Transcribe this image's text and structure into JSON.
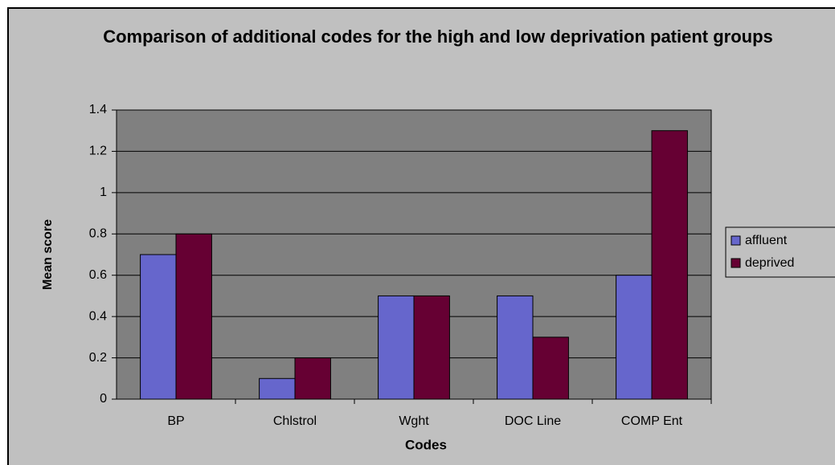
{
  "chart_data": {
    "type": "bar",
    "title": "Comparison of additional codes for the high and low deprivation patient groups",
    "x_label": "Codes",
    "y_label": "Mean score",
    "categories": [
      "BP",
      "Chlstrol",
      "Wght",
      "DOC Line",
      "COMP Ent"
    ],
    "series": [
      {
        "name": "affluent",
        "color": "#6666cc",
        "values": [
          0.7,
          0.1,
          0.5,
          0.5,
          0.6
        ]
      },
      {
        "name": "deprived",
        "color": "#660033",
        "values": [
          0.8,
          0.2,
          0.5,
          0.3,
          1.3
        ]
      }
    ],
    "ylim": [
      0,
      1.4
    ],
    "yticks": [
      0,
      0.2,
      0.4,
      0.6,
      0.8,
      1,
      1.2,
      1.4
    ],
    "grid": true,
    "legend": "right"
  }
}
